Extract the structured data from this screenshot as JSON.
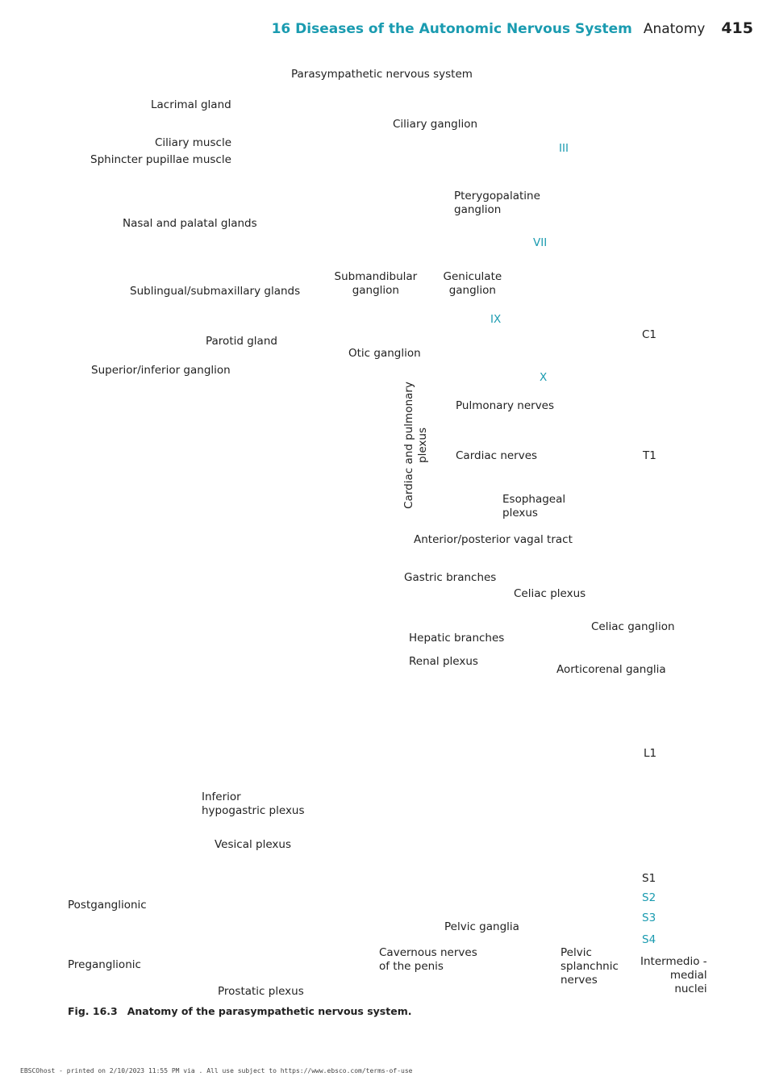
{
  "header": {
    "chapter": "16 Diseases of the Autonomic Nervous System",
    "section": "Anatomy",
    "page": "415"
  },
  "labels": [
    {
      "lines": [
        "Parasympathetic nervous system"
      ]
    },
    {
      "lines": [
        "Lacrimal gland"
      ]
    },
    {
      "lines": [
        "Ciliary ganglion"
      ]
    },
    {
      "lines": [
        "Ciliary muscle"
      ]
    },
    {
      "lines": [
        "Sphincter pupillae muscle"
      ]
    },
    {
      "lines": [
        "III"
      ]
    },
    {
      "lines": [
        "Pterygopalatine",
        "ganglion"
      ]
    },
    {
      "lines": [
        "Nasal and palatal glands"
      ]
    },
    {
      "lines": [
        "VII"
      ]
    },
    {
      "lines": [
        "Submandibular",
        "ganglion"
      ]
    },
    {
      "lines": [
        "Geniculate",
        "ganglion"
      ]
    },
    {
      "lines": [
        "Sublingual/submaxillary glands"
      ]
    },
    {
      "lines": [
        "IX"
      ]
    },
    {
      "lines": [
        "C1"
      ]
    },
    {
      "lines": [
        "Parotid gland"
      ]
    },
    {
      "lines": [
        "Otic ganglion"
      ]
    },
    {
      "lines": [
        "Superior/inferior ganglion"
      ]
    },
    {
      "lines": [
        "X"
      ]
    },
    {
      "lines": [
        "Cardiac and pulmonary",
        "plexus"
      ]
    },
    {
      "lines": [
        "Pulmonary nerves"
      ]
    },
    {
      "lines": [
        "Cardiac nerves"
      ]
    },
    {
      "lines": [
        "T1"
      ]
    },
    {
      "lines": [
        "Esophageal",
        "plexus"
      ]
    },
    {
      "lines": [
        "Anterior/posterior vagal tract"
      ]
    },
    {
      "lines": [
        "Gastric branches"
      ]
    },
    {
      "lines": [
        "Celiac plexus"
      ]
    },
    {
      "lines": [
        "Celiac ganglion"
      ]
    },
    {
      "lines": [
        "Hepatic branches"
      ]
    },
    {
      "lines": [
        "Renal plexus"
      ]
    },
    {
      "lines": [
        "Aorticorenal ganglia"
      ]
    },
    {
      "lines": [
        "L1"
      ]
    },
    {
      "lines": [
        "Inferior",
        "hypogastric plexus"
      ]
    },
    {
      "lines": [
        "Vesical plexus"
      ]
    },
    {
      "lines": [
        "S1"
      ]
    },
    {
      "lines": [
        "S2"
      ]
    },
    {
      "lines": [
        "S3"
      ]
    },
    {
      "lines": [
        "Postganglionic"
      ]
    },
    {
      "lines": [
        "Pelvic ganglia"
      ]
    },
    {
      "lines": [
        "S4"
      ]
    },
    {
      "lines": [
        "Cavernous nerves",
        "of the penis"
      ]
    },
    {
      "lines": [
        "Pelvic",
        "splanchnic",
        "nerves"
      ]
    },
    {
      "lines": [
        "Intermedio -",
        "medial",
        "nuclei"
      ]
    },
    {
      "lines": [
        "Preganglionic"
      ]
    },
    {
      "lines": [
        "Prostatic plexus"
      ]
    }
  ],
  "caption": {
    "label": "Fig. 16.3",
    "text": "Anatomy of the parasympathetic nervous system."
  },
  "footer": "EBSCOhost - printed on 2/10/2023 11:55 PM via . All use subject to https://www.ebsco.com/terms-of-use"
}
